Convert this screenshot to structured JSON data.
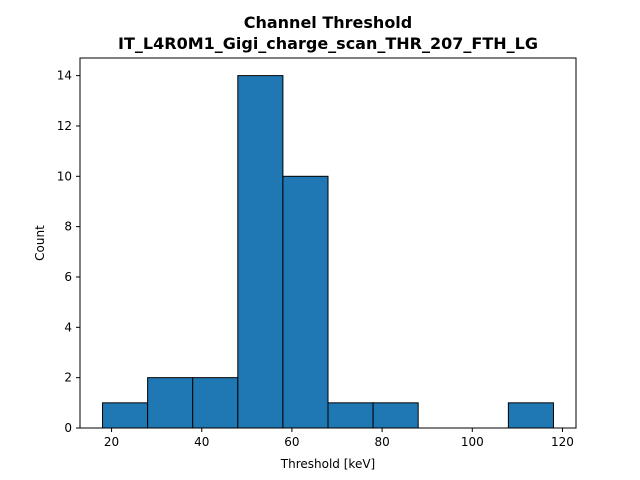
{
  "chart_data": {
    "type": "bar",
    "title_line1": "Channel Threshold",
    "title_line2": "IT_L4R0M1_Gigi_charge_scan_THR_207_FTH_LG",
    "xlabel": "Threshold [keV]",
    "ylabel": "Count",
    "bins": [
      {
        "x0": 18,
        "x1": 28,
        "count": 1
      },
      {
        "x0": 28,
        "x1": 38,
        "count": 2
      },
      {
        "x0": 38,
        "x1": 48,
        "count": 2
      },
      {
        "x0": 48,
        "x1": 58,
        "count": 14
      },
      {
        "x0": 58,
        "x1": 68,
        "count": 10
      },
      {
        "x0": 68,
        "x1": 78,
        "count": 1
      },
      {
        "x0": 78,
        "x1": 88,
        "count": 1
      },
      {
        "x0": 108,
        "x1": 118,
        "count": 1
      }
    ],
    "xlim": [
      13,
      123
    ],
    "ylim": [
      0,
      14.7
    ],
    "xticks": [
      "20",
      "40",
      "60",
      "80",
      "100",
      "120"
    ],
    "yticks": [
      "0",
      "2",
      "4",
      "6",
      "8",
      "10",
      "12",
      "14"
    ],
    "bar_color": "#1f77b4",
    "edge_color": "#000000",
    "grid": false
  }
}
